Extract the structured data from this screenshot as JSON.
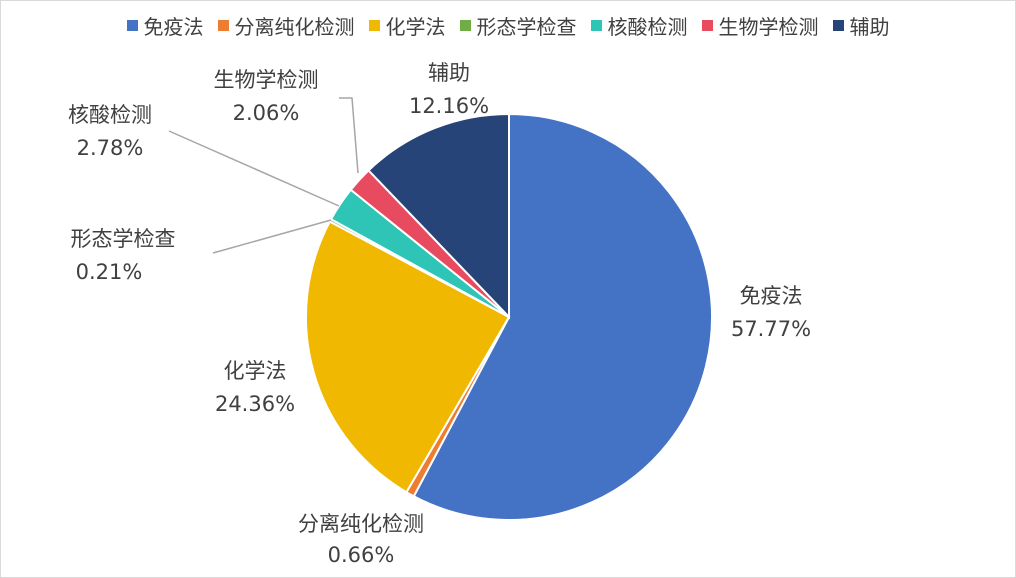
{
  "chart_data": {
    "type": "pie",
    "title": "",
    "legend_position": "top",
    "slices": [
      {
        "name": "免疫法",
        "value": 57.77,
        "label": "57.77%",
        "color": "#4472C4"
      },
      {
        "name": "分离纯化检测",
        "value": 0.66,
        "label": "0.66%",
        "color": "#ED7D31"
      },
      {
        "name": "化学法",
        "value": 24.36,
        "label": "24.36%",
        "color": "#F0B800"
      },
      {
        "name": "形态学检查",
        "value": 0.21,
        "label": "0.21%",
        "color": "#70AD47"
      },
      {
        "name": "核酸检测",
        "value": 2.78,
        "label": "2.78%",
        "color": "#2EC4B6"
      },
      {
        "name": "生物学检测",
        "value": 2.06,
        "label": "2.06%",
        "color": "#E84A5F"
      },
      {
        "name": "辅助",
        "value": 12.16,
        "label": "12.16%",
        "color": "#264478"
      }
    ]
  }
}
